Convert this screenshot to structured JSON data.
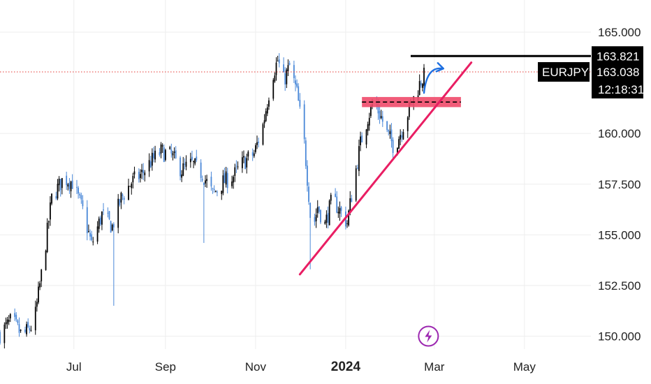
{
  "chart_data": {
    "type": "candlestick",
    "symbol": "EURJPY",
    "y_ticks": [
      "165.000",
      "160.000",
      "157.500",
      "155.000",
      "152.500",
      "150.000"
    ],
    "y_tick_values": [
      165.0,
      160.0,
      157.5,
      155.0,
      152.5,
      150.0
    ],
    "ylim": [
      149.5,
      166.0
    ],
    "x_ticks": [
      {
        "label": "Jul",
        "date": "2023-07-01",
        "bold": false
      },
      {
        "label": "Sep",
        "date": "2023-09-01",
        "bold": false
      },
      {
        "label": "Nov",
        "date": "2023-11-01",
        "bold": false
      },
      {
        "label": "2024",
        "date": "2024-01-01",
        "bold": true
      },
      {
        "label": "Mar",
        "date": "2024-03-01",
        "bold": false
      },
      {
        "label": "May",
        "date": "2024-05-01",
        "bold": false
      }
    ],
    "xlim": [
      "2023-05-12",
      "2024-06-15"
    ],
    "price_line": {
      "value": 163.038,
      "label": "163.038",
      "countdown": "12:18:31",
      "color": "#e53935"
    },
    "resistance_level": {
      "value": 163.821,
      "label": "163.821",
      "from": "2024-02-14",
      "to": "2024-06-15",
      "color": "#000000"
    },
    "support_zone": {
      "low": 161.3,
      "high": 161.8,
      "mid": 161.55,
      "from": "2024-01-12",
      "to": "2024-03-19",
      "fill": "#ef4a6a",
      "dash_color": "#000000"
    },
    "trendline": {
      "from": {
        "date": "2023-12-01",
        "value": 153.05
      },
      "to": {
        "date": "2024-03-26",
        "value": 163.5
      },
      "color": "#e91e63"
    },
    "arrow": {
      "from": {
        "date": "2024-02-23",
        "value": 162.0
      },
      "to": {
        "date": "2024-03-01",
        "value": 163.2
      },
      "color": "#1e6fe0"
    },
    "event_marker": {
      "date": "2024-02-26",
      "value": 150.0,
      "color": "#9c27b0",
      "icon": "lightning-bolt-icon"
    },
    "colors": {
      "up": "#000000",
      "down": "#4a88d8",
      "grid": "#eeeeee"
    },
    "anchors": [
      [
        "2023-05-12",
        150.1
      ],
      [
        "2023-05-20",
        150.8
      ],
      [
        "2023-05-27",
        150.0
      ],
      [
        "2023-06-04",
        150.6
      ],
      [
        "2023-06-10",
        153.5
      ],
      [
        "2023-06-16",
        156.8
      ],
      [
        "2023-06-24",
        157.8
      ],
      [
        "2023-06-30",
        157.6
      ],
      [
        "2023-07-07",
        156.2
      ],
      [
        "2023-07-13",
        154.5
      ],
      [
        "2023-07-20",
        156.0
      ],
      [
        "2023-07-27",
        155.4
      ],
      [
        "2023-08-02",
        156.8
      ],
      [
        "2023-08-09",
        157.6
      ],
      [
        "2023-08-16",
        158.0
      ],
      [
        "2023-08-22",
        158.6
      ],
      [
        "2023-08-29",
        159.1
      ],
      [
        "2023-09-05",
        158.9
      ],
      [
        "2023-09-12",
        158.2
      ],
      [
        "2023-09-19",
        158.5
      ],
      [
        "2023-09-26",
        158.0
      ],
      [
        "2023-10-03",
        157.0
      ],
      [
        "2023-10-10",
        157.6
      ],
      [
        "2023-10-17",
        157.9
      ],
      [
        "2023-10-24",
        158.6
      ],
      [
        "2023-10-31",
        159.0
      ],
      [
        "2023-11-06",
        160.4
      ],
      [
        "2023-11-12",
        162.8
      ],
      [
        "2023-11-16",
        163.6
      ],
      [
        "2023-11-20",
        162.6
      ],
      [
        "2023-11-24",
        163.3
      ],
      [
        "2023-11-29",
        162.0
      ],
      [
        "2023-12-04",
        159.5
      ],
      [
        "2023-12-07",
        157.0
      ],
      [
        "2023-12-09",
        155.0
      ],
      [
        "2023-12-13",
        156.4
      ],
      [
        "2023-12-18",
        155.5
      ],
      [
        "2023-12-23",
        156.8
      ],
      [
        "2023-12-28",
        156.2
      ],
      [
        "2024-01-02",
        155.6
      ],
      [
        "2024-01-06",
        157.4
      ],
      [
        "2024-01-11",
        159.5
      ],
      [
        "2024-01-16",
        160.8
      ],
      [
        "2024-01-20",
        161.6
      ],
      [
        "2024-01-25",
        160.8
      ],
      [
        "2024-01-29",
        160.0
      ],
      [
        "2024-02-03",
        159.3
      ],
      [
        "2024-02-08",
        160.2
      ],
      [
        "2024-02-13",
        161.2
      ],
      [
        "2024-02-17",
        161.9
      ],
      [
        "2024-02-21",
        162.6
      ],
      [
        "2024-02-25",
        163.04
      ]
    ],
    "spikes": [
      {
        "date": "2023-07-28",
        "low": 151.5
      },
      {
        "date": "2023-09-27",
        "low": 154.6
      },
      {
        "date": "2023-12-08",
        "low": 153.3
      },
      {
        "date": "2024-01-19",
        "high": 161.7
      }
    ]
  }
}
